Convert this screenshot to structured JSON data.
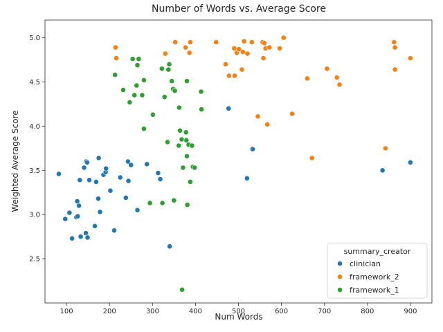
{
  "chart_data": {
    "type": "scatter",
    "title": "Number of Words vs. Average Score",
    "xlabel": "Num Words",
    "ylabel": "Weighted Average Score",
    "xlim": [
      50,
      950
    ],
    "ylim": [
      2.0,
      5.2
    ],
    "xticks": [
      100,
      200,
      300,
      400,
      500,
      600,
      700,
      800,
      900
    ],
    "yticks": [
      2.5,
      3.0,
      3.5,
      4.0,
      4.5,
      5.0
    ],
    "ytick_labels": [
      "2.5",
      "3.0",
      "3.5",
      "4.0",
      "4.5",
      "5.0"
    ],
    "grid": false,
    "legend": {
      "title": "summary_creator",
      "placement": "bottom-right"
    },
    "series": [
      {
        "name": "clinician",
        "color": "#1f77b4",
        "points": [
          [
            82,
            3.46
          ],
          [
            97,
            2.95
          ],
          [
            107,
            3.02
          ],
          [
            113,
            2.73
          ],
          [
            123,
            2.97
          ],
          [
            126,
            2.98
          ],
          [
            125,
            3.15
          ],
          [
            129,
            3.1
          ],
          [
            131,
            3.39
          ],
          [
            133,
            2.75
          ],
          [
            141,
            3.53
          ],
          [
            145,
            2.79
          ],
          [
            146,
            3.6
          ],
          [
            148,
            3.59
          ],
          [
            149,
            2.74
          ],
          [
            153,
            3.39
          ],
          [
            166,
            2.87
          ],
          [
            169,
            3.37
          ],
          [
            174,
            3.18
          ],
          [
            175,
            3.64
          ],
          [
            178,
            3.03
          ],
          [
            186,
            3.45
          ],
          [
            191,
            3.48
          ],
          [
            192,
            3.52
          ],
          [
            202,
            3.27
          ],
          [
            211,
            2.82
          ],
          [
            225,
            3.42
          ],
          [
            238,
            3.19
          ],
          [
            243,
            3.6
          ],
          [
            244,
            3.38
          ],
          [
            250,
            3.56
          ],
          [
            265,
            3.05
          ],
          [
            287,
            3.57
          ],
          [
            313,
            3.47
          ],
          [
            318,
            3.4
          ],
          [
            340,
            2.64
          ],
          [
            477,
            4.2
          ],
          [
            520,
            3.41
          ],
          [
            533,
            3.74
          ],
          [
            835,
            3.5
          ],
          [
            900,
            3.59
          ]
        ]
      },
      {
        "name": "framework_2",
        "color": "#ff7f0e",
        "points": [
          [
            214,
            4.89
          ],
          [
            216,
            4.77
          ],
          [
            330,
            4.82
          ],
          [
            353,
            4.95
          ],
          [
            377,
            4.89
          ],
          [
            386,
            4.83
          ],
          [
            388,
            4.95
          ],
          [
            448,
            4.95
          ],
          [
            470,
            4.7
          ],
          [
            478,
            4.57
          ],
          [
            490,
            4.88
          ],
          [
            491,
            4.57
          ],
          [
            496,
            4.83
          ],
          [
            501,
            4.87
          ],
          [
            508,
            4.64
          ],
          [
            510,
            4.84
          ],
          [
            513,
            4.96
          ],
          [
            521,
            4.82
          ],
          [
            531,
            4.95
          ],
          [
            545,
            4.11
          ],
          [
            556,
            4.95
          ],
          [
            558,
            4.77
          ],
          [
            560,
            4.94
          ],
          [
            563,
            4.88
          ],
          [
            567,
            4.02
          ],
          [
            572,
            4.89
          ],
          [
            596,
            4.88
          ],
          [
            605,
            5.0
          ],
          [
            625,
            4.14
          ],
          [
            660,
            4.54
          ],
          [
            671,
            3.64
          ],
          [
            706,
            4.65
          ],
          [
            729,
            4.55
          ],
          [
            735,
            4.47
          ],
          [
            842,
            3.75
          ],
          [
            862,
            4.95
          ],
          [
            864,
            4.89
          ],
          [
            864,
            4.64
          ],
          [
            900,
            4.77
          ]
        ]
      },
      {
        "name": "framework_1",
        "color": "#2ca02c",
        "points": [
          [
            213,
            4.58
          ],
          [
            232,
            4.41
          ],
          [
            247,
            4.27
          ],
          [
            254,
            4.76
          ],
          [
            258,
            4.35
          ],
          [
            263,
            4.46
          ],
          [
            265,
            4.69
          ],
          [
            268,
            4.76
          ],
          [
            276,
            4.35
          ],
          [
            280,
            3.97
          ],
          [
            280,
            4.52
          ],
          [
            294,
            3.13
          ],
          [
            301,
            4.13
          ],
          [
            322,
            4.65
          ],
          [
            323,
            3.13
          ],
          [
            328,
            4.33
          ],
          [
            335,
            3.82
          ],
          [
            337,
            4.64
          ],
          [
            339,
            4.7
          ],
          [
            345,
            4.51
          ],
          [
            348,
            4.42
          ],
          [
            350,
            3.16
          ],
          [
            352,
            4.4
          ],
          [
            361,
            3.78
          ],
          [
            362,
            4.21
          ],
          [
            364,
            3.95
          ],
          [
            368,
            3.85
          ],
          [
            369,
            2.15
          ],
          [
            371,
            3.53
          ],
          [
            378,
            3.93
          ],
          [
            379,
            3.84
          ],
          [
            380,
            4.51
          ],
          [
            380,
            3.66
          ],
          [
            381,
            3.11
          ],
          [
            384,
            3.79
          ],
          [
            388,
            3.37
          ],
          [
            392,
            3.78
          ],
          [
            394,
            3.54
          ],
          [
            398,
            3.53
          ],
          [
            413,
            4.39
          ],
          [
            414,
            4.19
          ]
        ]
      }
    ]
  }
}
